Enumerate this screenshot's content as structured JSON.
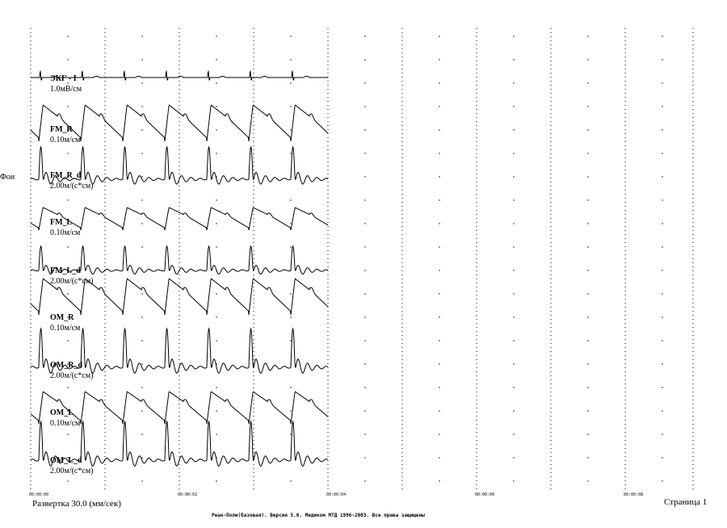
{
  "channels": [
    {
      "name": "ЭКГ - I",
      "scale": "1.0мВ/см"
    },
    {
      "name": "FM_R",
      "scale": "0.10м/см"
    },
    {
      "name": "FM_R_d",
      "scale": "2.00м/(с*см)"
    },
    {
      "name": "FM_L",
      "scale": "0.10м/см"
    },
    {
      "name": "FM_L_d",
      "scale": "2.00м/(с*см)"
    },
    {
      "name": "OM_R",
      "scale": "0.10м/см"
    },
    {
      "name": "OM_R_d",
      "scale": "2.00м/(с*см)"
    },
    {
      "name": "OM_L",
      "scale": "0.10м/см"
    },
    {
      "name": "OM_L_d",
      "scale": "2.00м/(с*см)"
    }
  ],
  "background_label": "Фон",
  "time_marks": [
    "00:00:00",
    "00:00:02",
    "00:00:04",
    "00:00:06",
    "00:00:08"
  ],
  "footer": {
    "sweep": "Развертка 30.0 (мм/сек)",
    "page": "Страница 1",
    "copyright": "Реан-Поли(базовая). Версия 5.0. Медиком МТД 1996-2003. Все права защищены"
  }
}
